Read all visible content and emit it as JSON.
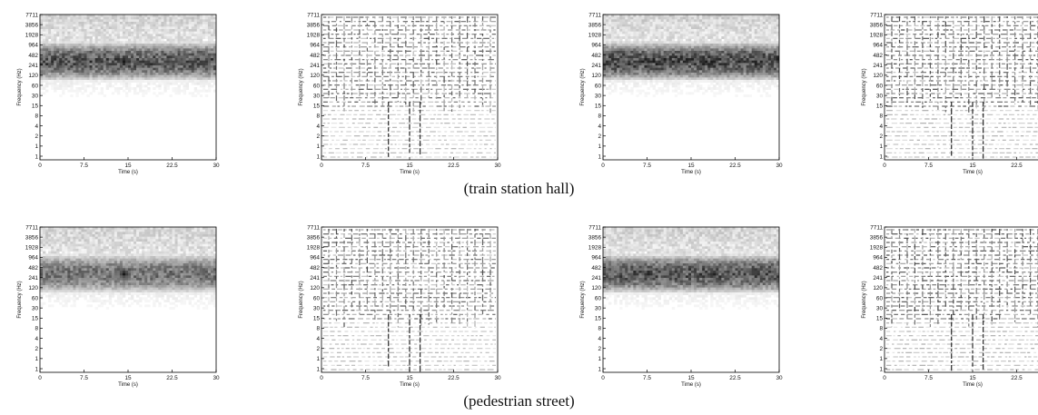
{
  "chart_data": {
    "type": "heatmap",
    "x_ticks": [
      "0",
      "7.5",
      "15",
      "22.5",
      "30"
    ],
    "xlim": [
      0,
      30
    ],
    "y_ticks": [
      "1",
      "1",
      "2",
      "4",
      "8",
      "15",
      "30",
      "60",
      "120",
      "241",
      "482",
      "964",
      "1928",
      "3856",
      "7711"
    ],
    "xlabel": "Time (s)",
    "ylabel": "Frequency (Hz)",
    "rows": [
      {
        "caption": "(train station hall)",
        "panels": [
          {
            "id": "hall-1",
            "style": "spectrogram",
            "band_hz": [
              120,
              964
            ],
            "darkness": 0.85
          },
          {
            "id": "hall-2",
            "style": "texture",
            "density": 0.75
          },
          {
            "id": "hall-3",
            "style": "spectrogram",
            "band_hz": [
              120,
              964
            ],
            "darkness": 0.9
          },
          {
            "id": "hall-4",
            "style": "texture",
            "density": 0.8
          }
        ]
      },
      {
        "caption": "(pedestrian street)",
        "panels": [
          {
            "id": "street-1",
            "style": "spectrogram",
            "band_hz": [
              120,
              964
            ],
            "darkness": 0.7
          },
          {
            "id": "street-2",
            "style": "texture",
            "density": 0.75
          },
          {
            "id": "street-3",
            "style": "spectrogram",
            "band_hz": [
              120,
              964
            ],
            "darkness": 0.85
          },
          {
            "id": "street-4",
            "style": "texture",
            "density": 0.8
          }
        ]
      }
    ]
  }
}
